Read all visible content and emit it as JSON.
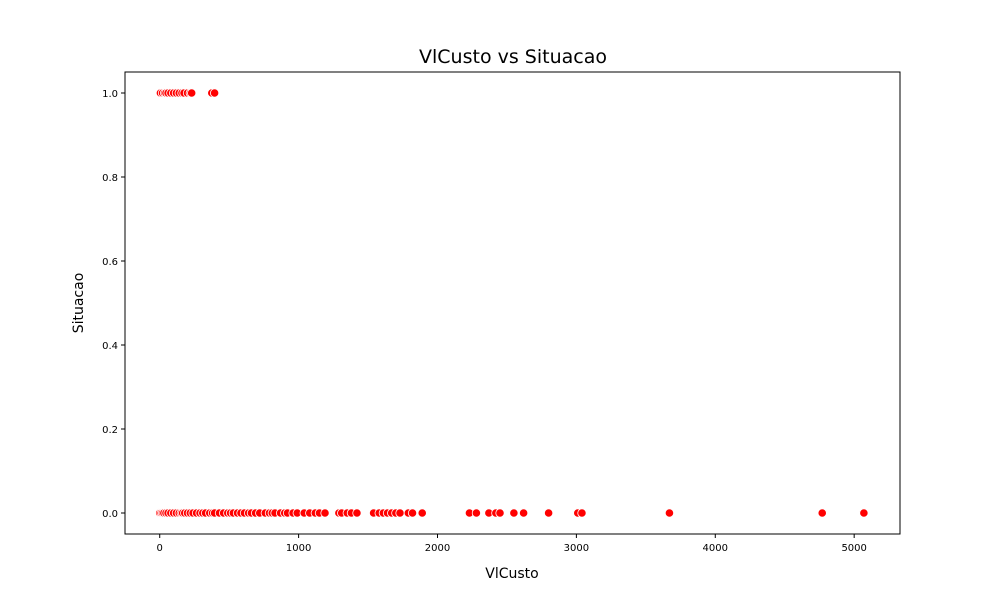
{
  "chart_data": {
    "type": "scatter",
    "title": "VlCusto vs Situacao",
    "xlabel": "VlCusto",
    "ylabel": "Situacao",
    "xlim": [
      -250,
      5330
    ],
    "ylim": [
      -0.05,
      1.05
    ],
    "xticks": [
      0,
      1000,
      2000,
      3000,
      4000,
      5000
    ],
    "yticks": [
      0.0,
      0.2,
      0.4,
      0.6,
      0.8,
      1.0
    ],
    "xtick_labels": [
      "0",
      "1000",
      "2000",
      "3000",
      "4000",
      "5000"
    ],
    "ytick_labels": [
      "0.0",
      "0.2",
      "0.4",
      "0.6",
      "0.8",
      "1.0"
    ],
    "grid": false,
    "legend": "none",
    "marker_color": "#ff0000",
    "marker_edge_color": "#ffffff",
    "points": [
      {
        "x": 5,
        "y": 1
      },
      {
        "x": 20,
        "y": 1
      },
      {
        "x": 35,
        "y": 1
      },
      {
        "x": 45,
        "y": 1
      },
      {
        "x": 60,
        "y": 1
      },
      {
        "x": 80,
        "y": 1
      },
      {
        "x": 100,
        "y": 1
      },
      {
        "x": 120,
        "y": 1
      },
      {
        "x": 140,
        "y": 1
      },
      {
        "x": 160,
        "y": 1
      },
      {
        "x": 175,
        "y": 1
      },
      {
        "x": 200,
        "y": 1
      },
      {
        "x": 220,
        "y": 1
      },
      {
        "x": 230,
        "y": 1
      },
      {
        "x": 375,
        "y": 1
      },
      {
        "x": 395,
        "y": 1
      },
      {
        "x": 0,
        "y": 0
      },
      {
        "x": 10,
        "y": 0
      },
      {
        "x": 20,
        "y": 0
      },
      {
        "x": 30,
        "y": 0
      },
      {
        "x": 45,
        "y": 0
      },
      {
        "x": 60,
        "y": 0
      },
      {
        "x": 80,
        "y": 0
      },
      {
        "x": 100,
        "y": 0
      },
      {
        "x": 120,
        "y": 0
      },
      {
        "x": 140,
        "y": 0
      },
      {
        "x": 155,
        "y": 0
      },
      {
        "x": 165,
        "y": 0
      },
      {
        "x": 180,
        "y": 0
      },
      {
        "x": 200,
        "y": 0
      },
      {
        "x": 220,
        "y": 0
      },
      {
        "x": 240,
        "y": 0
      },
      {
        "x": 265,
        "y": 0
      },
      {
        "x": 290,
        "y": 0
      },
      {
        "x": 310,
        "y": 0
      },
      {
        "x": 330,
        "y": 0
      },
      {
        "x": 360,
        "y": 0
      },
      {
        "x": 380,
        "y": 0
      },
      {
        "x": 395,
        "y": 0
      },
      {
        "x": 430,
        "y": 0
      },
      {
        "x": 460,
        "y": 0
      },
      {
        "x": 490,
        "y": 0
      },
      {
        "x": 510,
        "y": 0
      },
      {
        "x": 530,
        "y": 0
      },
      {
        "x": 560,
        "y": 0
      },
      {
        "x": 585,
        "y": 0
      },
      {
        "x": 610,
        "y": 0
      },
      {
        "x": 640,
        "y": 0
      },
      {
        "x": 660,
        "y": 0
      },
      {
        "x": 690,
        "y": 0
      },
      {
        "x": 720,
        "y": 0
      },
      {
        "x": 760,
        "y": 0
      },
      {
        "x": 790,
        "y": 0
      },
      {
        "x": 810,
        "y": 0
      },
      {
        "x": 830,
        "y": 0
      },
      {
        "x": 870,
        "y": 0
      },
      {
        "x": 900,
        "y": 0
      },
      {
        "x": 920,
        "y": 0
      },
      {
        "x": 960,
        "y": 0
      },
      {
        "x": 990,
        "y": 0
      },
      {
        "x": 1040,
        "y": 0
      },
      {
        "x": 1080,
        "y": 0
      },
      {
        "x": 1120,
        "y": 0
      },
      {
        "x": 1150,
        "y": 0
      },
      {
        "x": 1190,
        "y": 0
      },
      {
        "x": 1290,
        "y": 0
      },
      {
        "x": 1310,
        "y": 0
      },
      {
        "x": 1350,
        "y": 0
      },
      {
        "x": 1380,
        "y": 0
      },
      {
        "x": 1420,
        "y": 0
      },
      {
        "x": 1540,
        "y": 0
      },
      {
        "x": 1580,
        "y": 0
      },
      {
        "x": 1610,
        "y": 0
      },
      {
        "x": 1640,
        "y": 0
      },
      {
        "x": 1670,
        "y": 0
      },
      {
        "x": 1700,
        "y": 0
      },
      {
        "x": 1730,
        "y": 0
      },
      {
        "x": 1790,
        "y": 0
      },
      {
        "x": 1820,
        "y": 0
      },
      {
        "x": 1890,
        "y": 0
      },
      {
        "x": 2230,
        "y": 0
      },
      {
        "x": 2280,
        "y": 0
      },
      {
        "x": 2370,
        "y": 0
      },
      {
        "x": 2420,
        "y": 0
      },
      {
        "x": 2450,
        "y": 0
      },
      {
        "x": 2550,
        "y": 0
      },
      {
        "x": 2620,
        "y": 0
      },
      {
        "x": 2800,
        "y": 0
      },
      {
        "x": 3010,
        "y": 0
      },
      {
        "x": 3040,
        "y": 0
      },
      {
        "x": 3670,
        "y": 0
      },
      {
        "x": 4770,
        "y": 0
      },
      {
        "x": 5070,
        "y": 0
      }
    ]
  }
}
